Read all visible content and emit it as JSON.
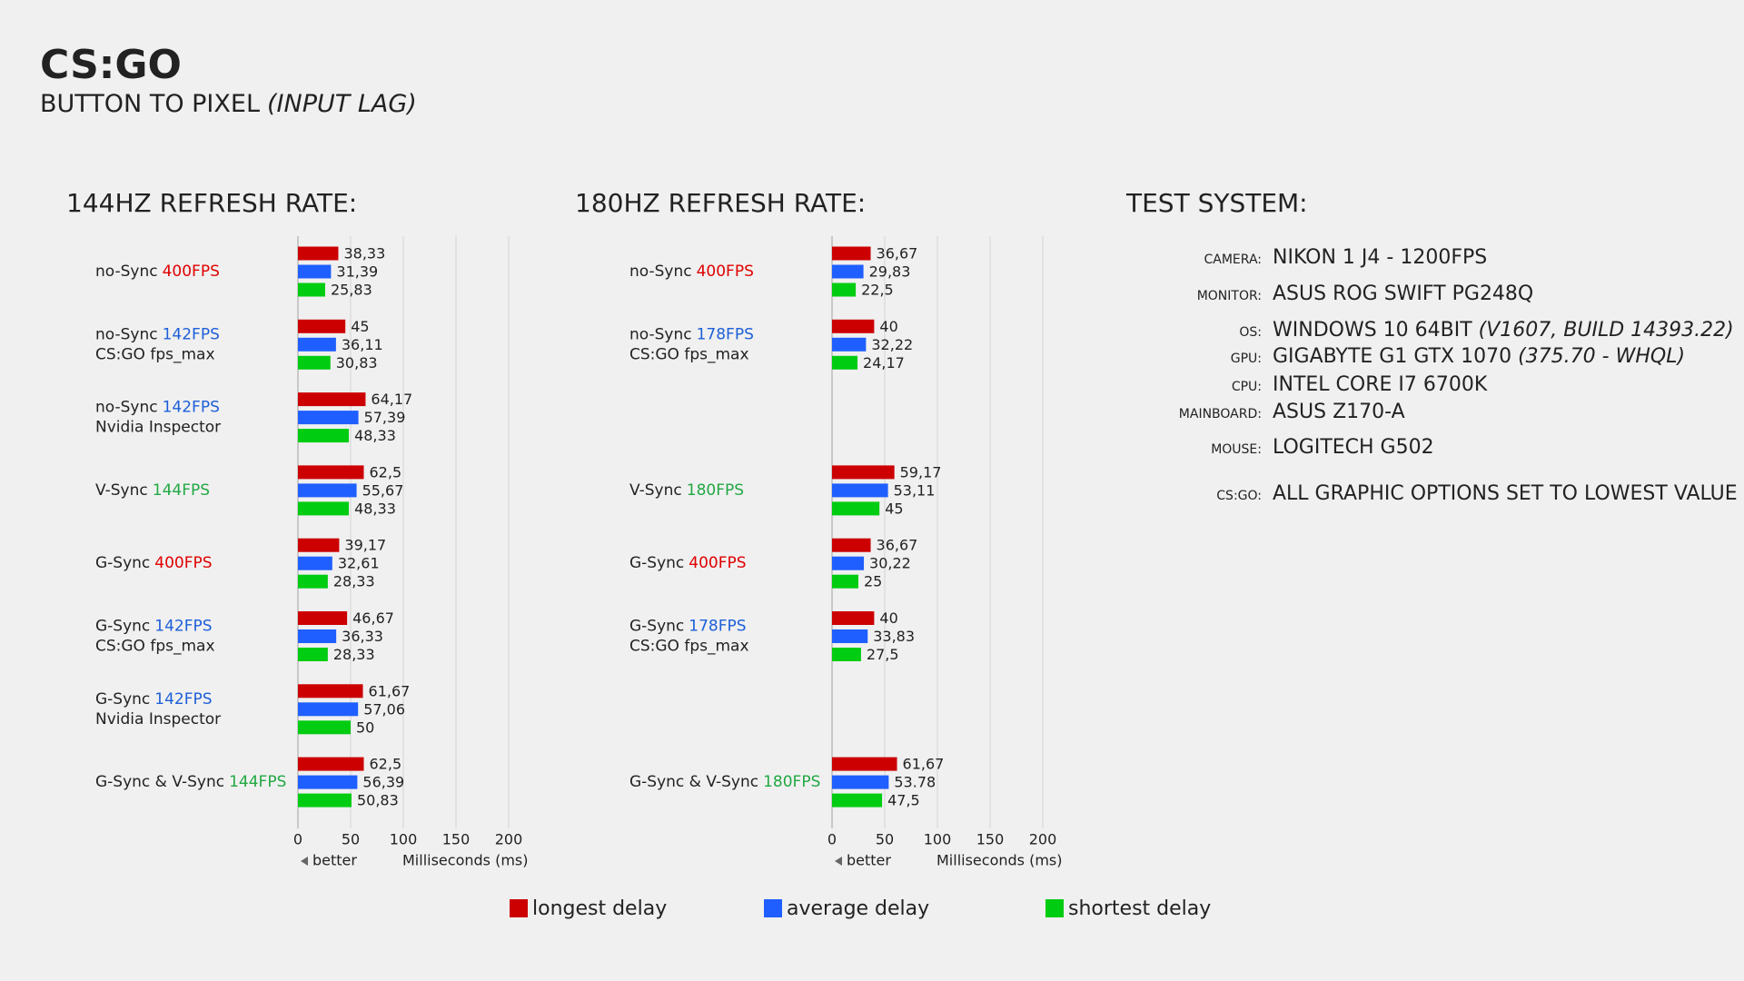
{
  "header": {
    "title": "CS:GO",
    "subtitle": "BUTTON TO PIXEL",
    "subtitle_note": "(INPUT LAG)"
  },
  "chart_data": [
    {
      "type": "bar",
      "orientation": "horizontal",
      "title": "144HZ REFRESH RATE:",
      "categories": [
        "no-Sync",
        "no-Sync",
        "no-Sync",
        "V-Sync",
        "G-Sync",
        "G-Sync",
        "G-Sync",
        "G-Sync & V-Sync"
      ],
      "category_fps": [
        "400FPS",
        "142FPS",
        "142FPS",
        "144FPS",
        "400FPS",
        "142FPS",
        "142FPS",
        "144FPS"
      ],
      "category_fps_colors": [
        "#e00000",
        "#1d5fd8",
        "#1d5fd8",
        "#22a843",
        "#e00000",
        "#1d5fd8",
        "#1d5fd8",
        "#22a843"
      ],
      "category_notes": [
        null,
        "CS:GO fps_max",
        "Nvidia Inspector",
        null,
        null,
        "CS:GO fps_max",
        "Nvidia Inspector",
        null
      ],
      "note_color": "#f07f0b",
      "series": [
        {
          "name": "longest delay",
          "color": "#cc0000",
          "values": [
            38.33,
            45,
            64.17,
            62.5,
            39.17,
            46.67,
            61.67,
            62.5
          ],
          "value_labels": [
            "38,33",
            "45",
            "64,17",
            "62,5",
            "39,17",
            "46,67",
            "61,67",
            "62,5"
          ]
        },
        {
          "name": "average delay",
          "color": "#1f5fff",
          "values": [
            31.39,
            36.11,
            57.39,
            55.67,
            32.61,
            36.33,
            57.06,
            56.39
          ],
          "value_labels": [
            "31,39",
            "36,11",
            "57,39",
            "55,67",
            "32,61",
            "36,33",
            "57,06",
            "56,39"
          ]
        },
        {
          "name": "shortest delay",
          "color": "#00cc11",
          "values": [
            25.83,
            30.83,
            48.33,
            48.33,
            28.33,
            28.33,
            50,
            50.83
          ],
          "value_labels": [
            "25,83",
            "30,83",
            "48,33",
            "48,33",
            "28,33",
            "28,33",
            "50",
            "50,83"
          ]
        }
      ],
      "xlim": [
        0,
        200
      ],
      "xticks": [
        0,
        50,
        100,
        150,
        200
      ],
      "grid": true,
      "xlabel": "Milliseconds (ms)",
      "annotation": "better",
      "legend": "bottom"
    },
    {
      "type": "bar",
      "orientation": "horizontal",
      "title": "180HZ REFRESH RATE:",
      "categories": [
        "no-Sync",
        "no-Sync",
        null,
        "V-Sync",
        "G-Sync",
        "G-Sync",
        null,
        "G-Sync & V-Sync"
      ],
      "category_fps": [
        "400FPS",
        "178FPS",
        null,
        "180FPS",
        "400FPS",
        "178FPS",
        null,
        "180FPS"
      ],
      "category_fps_colors": [
        "#e00000",
        "#1d5fd8",
        null,
        "#22a843",
        "#e00000",
        "#1d5fd8",
        null,
        "#22a843"
      ],
      "category_notes": [
        null,
        "CS:GO fps_max",
        null,
        null,
        null,
        "CS:GO fps_max",
        null,
        null
      ],
      "note_color": "#f07f0b",
      "series": [
        {
          "color": "#cc0000",
          "values": [
            36.67,
            40,
            null,
            59.17,
            36.67,
            40,
            null,
            61.67
          ],
          "value_labels": [
            "36,67",
            "40",
            null,
            "59,17",
            "36,67",
            "40",
            null,
            "61,67"
          ]
        },
        {
          "color": "#1f5fff",
          "values": [
            29.83,
            32.22,
            null,
            53.11,
            30.22,
            33.83,
            null,
            53.78
          ],
          "value_labels": [
            "29,83",
            "32,22",
            null,
            "53,11",
            "30,22",
            "33,83",
            null,
            "53.78"
          ]
        },
        {
          "color": "#00cc11",
          "values": [
            22.5,
            24.17,
            null,
            45,
            25,
            27.5,
            null,
            47.5
          ],
          "value_labels": [
            "22,5",
            "24,17",
            null,
            "45",
            "25",
            "27,5",
            null,
            "47,5"
          ]
        }
      ],
      "xlim": [
        0,
        200
      ],
      "xticks": [
        0,
        50,
        100,
        150,
        200
      ],
      "grid": true,
      "xlabel": "Milliseconds (ms)",
      "annotation": "better"
    }
  ],
  "test_system": {
    "title": "TEST SYSTEM:",
    "rows": [
      {
        "label": "CAMERA:",
        "value": "NIKON 1 J4 - 1200FPS"
      },
      {
        "label": "MONITOR:",
        "value": "ASUS ROG SWIFT PG248Q"
      },
      {
        "label": "OS:",
        "value": "WINDOWS 10 64BIT",
        "detail": "(V1607, BUILD 14393.22)"
      },
      {
        "label": "GPU:",
        "value": "GIGABYTE G1 GTX 1070",
        "detail": "(375.70 - WHQL)"
      },
      {
        "label": "CPU:",
        "value": "INTEL CORE I7 6700K"
      },
      {
        "label": "MAINBOARD:",
        "value": "ASUS Z170-A"
      },
      {
        "label": "MOUSE:",
        "value": "LOGITECH G502"
      },
      {
        "label": "CS:GO:",
        "value": "ALL GRAPHIC OPTIONS SET TO  LOWEST VALUE"
      }
    ]
  }
}
